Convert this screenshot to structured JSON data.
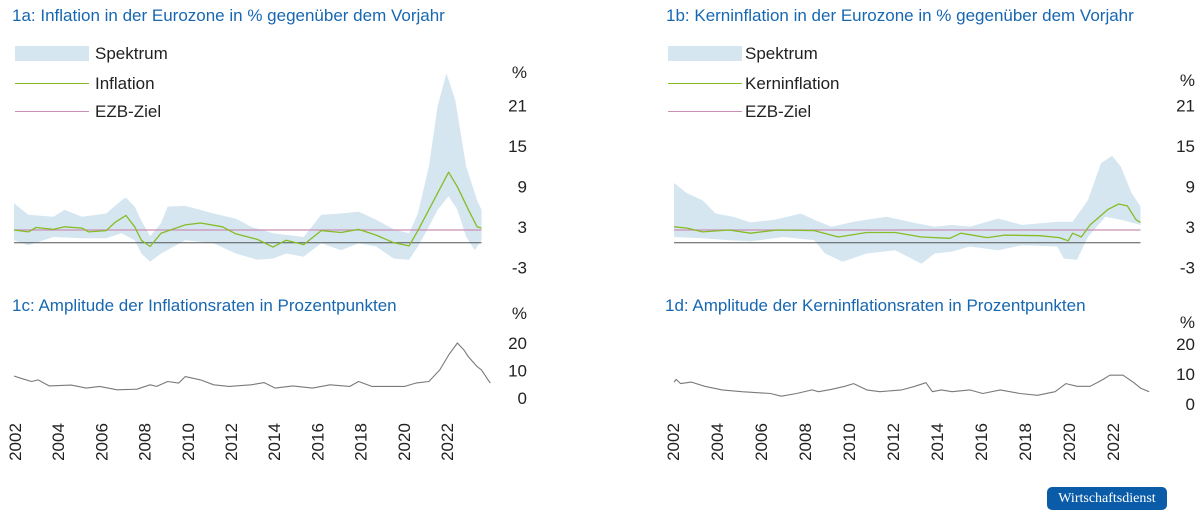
{
  "colors": {
    "band": "#d5e6f1",
    "line": "#86bc25",
    "target": "#c98fb5",
    "zero": "#555555",
    "amplitude": "#7a7a7a",
    "title": "#1767b1",
    "badge": "#0b5ca8"
  },
  "badge": "Wirtschaftsdienst",
  "chart_data": [
    {
      "id": "1a",
      "type": "area",
      "title": "1a: Inflation in der Eurozone in % gegenüber dem Vorjahr",
      "ylabel": "%",
      "ylim": [
        -3,
        27
      ],
      "yticks": [
        "21",
        "15",
        "9",
        "3",
        "-3"
      ],
      "legend": [
        "Spektrum",
        "Inflation",
        "EZB-Ziel"
      ],
      "target": 2,
      "band_upper": [
        [
          2002.0,
          6.2
        ],
        [
          2002.65,
          4.4
        ],
        [
          2003.8,
          4.1
        ],
        [
          2004.3,
          5.2
        ],
        [
          2005.1,
          4.1
        ],
        [
          2006.2,
          4.6
        ],
        [
          2006.9,
          6.7
        ],
        [
          2007.1,
          7.1
        ],
        [
          2007.5,
          5.7
        ],
        [
          2007.8,
          3.5
        ],
        [
          2008.2,
          1.0
        ],
        [
          2008.7,
          3.1
        ],
        [
          2009.0,
          5.7
        ],
        [
          2009.8,
          5.8
        ],
        [
          2011.1,
          4.6
        ],
        [
          2012.1,
          3.8
        ],
        [
          2012.8,
          2.5
        ],
        [
          2013.8,
          1.5
        ],
        [
          2015.2,
          0.9
        ],
        [
          2016.0,
          4.4
        ],
        [
          2016.9,
          4.6
        ],
        [
          2017.7,
          4.9
        ],
        [
          2018.5,
          3.6
        ],
        [
          2019.3,
          2.1
        ],
        [
          2020.0,
          1.5
        ],
        [
          2020.4,
          4.6
        ],
        [
          2020.9,
          12
        ],
        [
          2021.3,
          21.5
        ],
        [
          2021.7,
          26.7
        ],
        [
          2022.1,
          22.5
        ],
        [
          2022.6,
          12
        ],
        [
          2023.1,
          6.7
        ],
        [
          2023.3,
          5.2
        ]
      ],
      "band_lower": [
        [
          2002.0,
          0.4
        ],
        [
          2002.65,
          -0.4
        ],
        [
          2003.8,
          0.9
        ],
        [
          2005.1,
          0.7
        ],
        [
          2006.2,
          0.7
        ],
        [
          2006.9,
          1.5
        ],
        [
          2007.5,
          0.4
        ],
        [
          2007.8,
          -1.7
        ],
        [
          2008.2,
          -3.0
        ],
        [
          2008.7,
          -1.7
        ],
        [
          2009.8,
          0.4
        ],
        [
          2011.1,
          -0.1
        ],
        [
          2012.1,
          -1.7
        ],
        [
          2013.1,
          -2.7
        ],
        [
          2013.8,
          -2.5
        ],
        [
          2014.4,
          -1.7
        ],
        [
          2015.2,
          -2.2
        ],
        [
          2016.0,
          -0.1
        ],
        [
          2016.9,
          -1.2
        ],
        [
          2017.7,
          -0.1
        ],
        [
          2018.5,
          -0.6
        ],
        [
          2019.3,
          -2.5
        ],
        [
          2020.0,
          -2.7
        ],
        [
          2020.4,
          -0.6
        ],
        [
          2020.9,
          2.5
        ],
        [
          2021.3,
          5.2
        ],
        [
          2021.8,
          7.3
        ],
        [
          2022.2,
          5.2
        ],
        [
          2022.6,
          0.9
        ],
        [
          2023.0,
          -1.2
        ],
        [
          2023.3,
          0.4
        ]
      ],
      "series": [
        [
          2002.0,
          2.0
        ],
        [
          2002.65,
          1.7
        ],
        [
          2003.0,
          2.4
        ],
        [
          2003.8,
          2.1
        ],
        [
          2004.3,
          2.5
        ],
        [
          2005.1,
          2.3
        ],
        [
          2005.4,
          1.7
        ],
        [
          2006.2,
          1.9
        ],
        [
          2006.6,
          3.2
        ],
        [
          2007.1,
          4.3
        ],
        [
          2007.5,
          2.5
        ],
        [
          2007.8,
          0.4
        ],
        [
          2008.2,
          -0.6
        ],
        [
          2008.7,
          1.5
        ],
        [
          2009.8,
          2.8
        ],
        [
          2010.5,
          3.1
        ],
        [
          2011.5,
          2.5
        ],
        [
          2012.1,
          1.4
        ],
        [
          2013.1,
          0.5
        ],
        [
          2013.8,
          -0.7
        ],
        [
          2014.4,
          0.4
        ],
        [
          2015.2,
          -0.3
        ],
        [
          2016.0,
          1.9
        ],
        [
          2016.9,
          1.6
        ],
        [
          2017.7,
          2.1
        ],
        [
          2018.5,
          1.2
        ],
        [
          2019.3,
          0.0
        ],
        [
          2020.0,
          -0.5
        ],
        [
          2020.4,
          1.9
        ],
        [
          2020.9,
          5.2
        ],
        [
          2021.3,
          7.8
        ],
        [
          2021.8,
          11.1
        ],
        [
          2022.2,
          8.8
        ],
        [
          2022.7,
          5.2
        ],
        [
          2023.1,
          2.5
        ],
        [
          2023.3,
          2.3
        ]
      ]
    },
    {
      "id": "1b",
      "type": "area",
      "title": "1b: Kerninflation in der Eurozone in % gegenüber dem Vorjahr",
      "ylabel": "%",
      "ylim": [
        -3,
        27
      ],
      "yticks": [
        "21",
        "15",
        "9",
        "3",
        "-3"
      ],
      "legend": [
        "Spektrum",
        "Kerninflation",
        "EZB-Ziel"
      ],
      "target": 2,
      "band_upper": [
        [
          2002.0,
          9.4
        ],
        [
          2002.6,
          7.8
        ],
        [
          2003.3,
          6.7
        ],
        [
          2003.9,
          4.6
        ],
        [
          2004.7,
          4.1
        ],
        [
          2005.5,
          3.2
        ],
        [
          2006.6,
          3.6
        ],
        [
          2007.8,
          4.6
        ],
        [
          2008.4,
          3.6
        ],
        [
          2009.2,
          2.5
        ],
        [
          2010.2,
          3.3
        ],
        [
          2011.7,
          4.1
        ],
        [
          2013.0,
          3.1
        ],
        [
          2013.9,
          2.5
        ],
        [
          2014.7,
          2.8
        ],
        [
          2015.5,
          2.5
        ],
        [
          2016.8,
          3.8
        ],
        [
          2017.9,
          2.8
        ],
        [
          2019.5,
          3.3
        ],
        [
          2020.2,
          3.3
        ],
        [
          2020.9,
          6.7
        ],
        [
          2021.5,
          12.5
        ],
        [
          2022.0,
          13.7
        ],
        [
          2022.4,
          12
        ],
        [
          2022.9,
          7.8
        ],
        [
          2023.3,
          5.7
        ]
      ],
      "band_lower": [
        [
          2002.0,
          0.9
        ],
        [
          2003.3,
          0.7
        ],
        [
          2004.5,
          0.4
        ],
        [
          2005.5,
          0.2
        ],
        [
          2007.0,
          0.9
        ],
        [
          2008.4,
          0.4
        ],
        [
          2008.9,
          -1.7
        ],
        [
          2009.7,
          -3.0
        ],
        [
          2010.8,
          -1.7
        ],
        [
          2012.1,
          -1.2
        ],
        [
          2013.3,
          -3.3
        ],
        [
          2013.9,
          -1.7
        ],
        [
          2014.7,
          -1.4
        ],
        [
          2015.5,
          -0.6
        ],
        [
          2016.8,
          -1.2
        ],
        [
          2017.9,
          -0.4
        ],
        [
          2019.5,
          -0.6
        ],
        [
          2019.8,
          -2.5
        ],
        [
          2020.4,
          -2.7
        ],
        [
          2020.9,
          0.9
        ],
        [
          2021.7,
          4.1
        ],
        [
          2022.4,
          3.6
        ],
        [
          2023.3,
          2.8
        ]
      ],
      "series": [
        [
          2002.0,
          2.5
        ],
        [
          2002.6,
          2.3
        ],
        [
          2003.3,
          1.7
        ],
        [
          2004.5,
          2.0
        ],
        [
          2005.5,
          1.5
        ],
        [
          2006.7,
          2.0
        ],
        [
          2008.4,
          1.9
        ],
        [
          2009.5,
          0.9
        ],
        [
          2010.8,
          1.6
        ],
        [
          2012.1,
          1.6
        ],
        [
          2013.3,
          0.9
        ],
        [
          2014.6,
          0.7
        ],
        [
          2015.1,
          1.5
        ],
        [
          2016.3,
          0.8
        ],
        [
          2017.1,
          1.2
        ],
        [
          2018.7,
          1.1
        ],
        [
          2019.6,
          0.8
        ],
        [
          2020.0,
          0.3
        ],
        [
          2020.2,
          1.5
        ],
        [
          2020.6,
          0.9
        ],
        [
          2021.0,
          2.8
        ],
        [
          2021.8,
          5.2
        ],
        [
          2022.3,
          6.1
        ],
        [
          2022.7,
          5.8
        ],
        [
          2023.1,
          3.6
        ],
        [
          2023.3,
          3.2
        ]
      ]
    },
    {
      "id": "1c",
      "type": "line",
      "title": "1c: Amplitude der Inflationsraten in Prozentpunkten",
      "ylabel": "%",
      "ylim": [
        0,
        20
      ],
      "yticks": [
        "20",
        "10",
        "0"
      ],
      "xticks": [
        "2002",
        "2004",
        "2006",
        "2008",
        "2010",
        "2012",
        "2014",
        "2016",
        "2018",
        "2020",
        "2022"
      ],
      "series": [
        [
          2002.0,
          8.0
        ],
        [
          2002.3,
          7.2
        ],
        [
          2002.8,
          6.0
        ],
        [
          2003.1,
          6.6
        ],
        [
          2003.6,
          4.4
        ],
        [
          2004.6,
          4.7
        ],
        [
          2005.3,
          3.6
        ],
        [
          2005.9,
          4.2
        ],
        [
          2006.7,
          3.0
        ],
        [
          2007.6,
          3.2
        ],
        [
          2008.2,
          4.8
        ],
        [
          2008.5,
          4.2
        ],
        [
          2009.0,
          6.0
        ],
        [
          2009.5,
          5.4
        ],
        [
          2009.8,
          7.8
        ],
        [
          2010.5,
          6.6
        ],
        [
          2011.1,
          4.8
        ],
        [
          2011.8,
          4.2
        ],
        [
          2012.8,
          4.8
        ],
        [
          2013.4,
          5.6
        ],
        [
          2013.9,
          3.6
        ],
        [
          2014.7,
          4.4
        ],
        [
          2015.6,
          3.6
        ],
        [
          2016.4,
          4.8
        ],
        [
          2017.3,
          4.2
        ],
        [
          2017.7,
          6.0
        ],
        [
          2018.3,
          4.2
        ],
        [
          2019.0,
          4.2
        ],
        [
          2019.8,
          4.2
        ],
        [
          2020.3,
          5.4
        ],
        [
          2020.9,
          6.0
        ],
        [
          2021.4,
          10.2
        ],
        [
          2021.8,
          15.6
        ],
        [
          2022.2,
          20.0
        ],
        [
          2022.5,
          17.4
        ],
        [
          2022.7,
          15.0
        ],
        [
          2023.1,
          11.4
        ],
        [
          2023.3,
          10.2
        ],
        [
          2023.6,
          6.6
        ],
        [
          2023.7,
          5.4
        ]
      ]
    },
    {
      "id": "1d",
      "type": "line",
      "title": "1d: Amplitude der Kerninflationsraten in Prozentpunkten",
      "ylabel": "%",
      "ylim": [
        0,
        20
      ],
      "yticks": [
        "20",
        "10",
        "0"
      ],
      "xticks": [
        "2002",
        "2004",
        "2006",
        "2008",
        "2010",
        "2012",
        "2014",
        "2016",
        "2018",
        "2020",
        "2022"
      ],
      "series": [
        [
          2002.0,
          7.3
        ],
        [
          2002.1,
          8.2
        ],
        [
          2002.3,
          6.8
        ],
        [
          2002.8,
          7.3
        ],
        [
          2003.4,
          5.9
        ],
        [
          2004.2,
          4.7
        ],
        [
          2005.1,
          4.1
        ],
        [
          2006.4,
          3.5
        ],
        [
          2006.9,
          2.6
        ],
        [
          2007.6,
          3.5
        ],
        [
          2008.3,
          4.7
        ],
        [
          2008.6,
          4.1
        ],
        [
          2009.2,
          4.9
        ],
        [
          2009.8,
          5.9
        ],
        [
          2010.2,
          6.8
        ],
        [
          2010.8,
          4.7
        ],
        [
          2011.4,
          4.1
        ],
        [
          2012.4,
          4.7
        ],
        [
          2013.0,
          5.9
        ],
        [
          2013.5,
          7.1
        ],
        [
          2013.8,
          4.1
        ],
        [
          2014.2,
          4.7
        ],
        [
          2014.7,
          4.1
        ],
        [
          2015.5,
          4.7
        ],
        [
          2016.1,
          3.5
        ],
        [
          2016.9,
          4.7
        ],
        [
          2017.8,
          3.5
        ],
        [
          2018.6,
          2.9
        ],
        [
          2019.4,
          4.1
        ],
        [
          2019.9,
          6.8
        ],
        [
          2020.4,
          5.9
        ],
        [
          2021.0,
          5.9
        ],
        [
          2021.6,
          8.2
        ],
        [
          2021.9,
          9.6
        ],
        [
          2022.5,
          9.6
        ],
        [
          2023.0,
          7.1
        ],
        [
          2023.3,
          5.3
        ],
        [
          2023.7,
          4.1
        ]
      ]
    }
  ]
}
